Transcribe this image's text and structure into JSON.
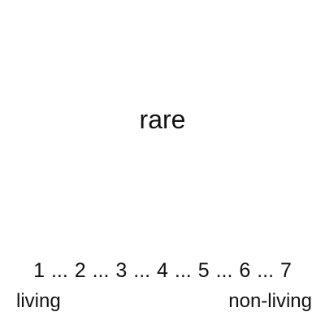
{
  "stimulus": {
    "word": "rare"
  },
  "scale": {
    "points": [
      "1",
      "2",
      "3",
      "4",
      "5",
      "6",
      "7"
    ],
    "separator": "...",
    "left_anchor": "living",
    "right_anchor": "non-living"
  }
}
